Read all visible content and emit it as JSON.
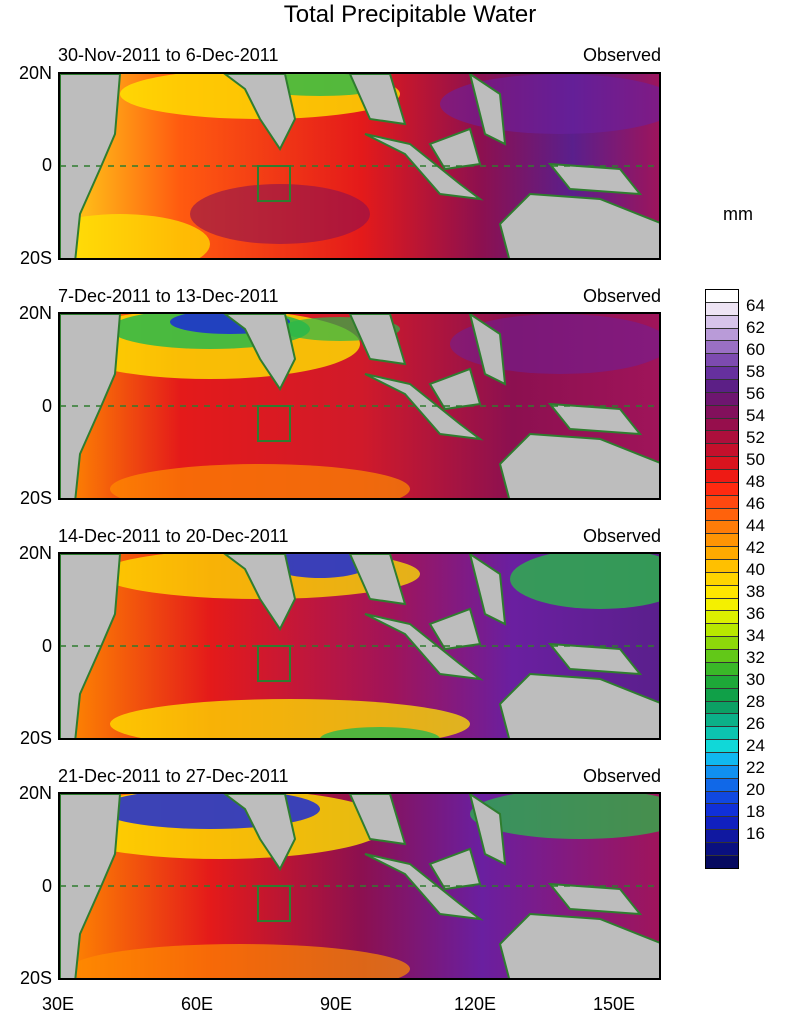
{
  "title": "Total Precipitable Water",
  "units": "mm",
  "panels": [
    {
      "period": "30-Nov-2011 to 6-Dec-2011",
      "tag": "Observed"
    },
    {
      "period": "7-Dec-2011 to 13-Dec-2011",
      "tag": "Observed"
    },
    {
      "period": "14-Dec-2011 to 20-Dec-2011",
      "tag": "Observed"
    },
    {
      "period": "21-Dec-2011 to 27-Dec-2011",
      "tag": "Observed"
    }
  ],
  "lat_labels": [
    "20N",
    "0",
    "20S"
  ],
  "lon_labels": [
    "30E",
    "60E",
    "90E",
    "120E",
    "150E"
  ],
  "colorbar_labels": [
    "64",
    "62",
    "60",
    "58",
    "56",
    "54",
    "52",
    "50",
    "48",
    "46",
    "44",
    "42",
    "40",
    "38",
    "36",
    "34",
    "32",
    "30",
    "28",
    "26",
    "24",
    "22",
    "20",
    "18",
    "16"
  ],
  "colors": {
    "land": "#bdbdbd",
    "coast": "#2f7d2f",
    "very_wet": "#6a1fa0",
    "wet": "#a0145a",
    "moist": "#e82020",
    "medium": "#ff8c00",
    "dry": "#ffe600",
    "drier": "#2ab84a",
    "driest": "#1a2cd6"
  }
}
